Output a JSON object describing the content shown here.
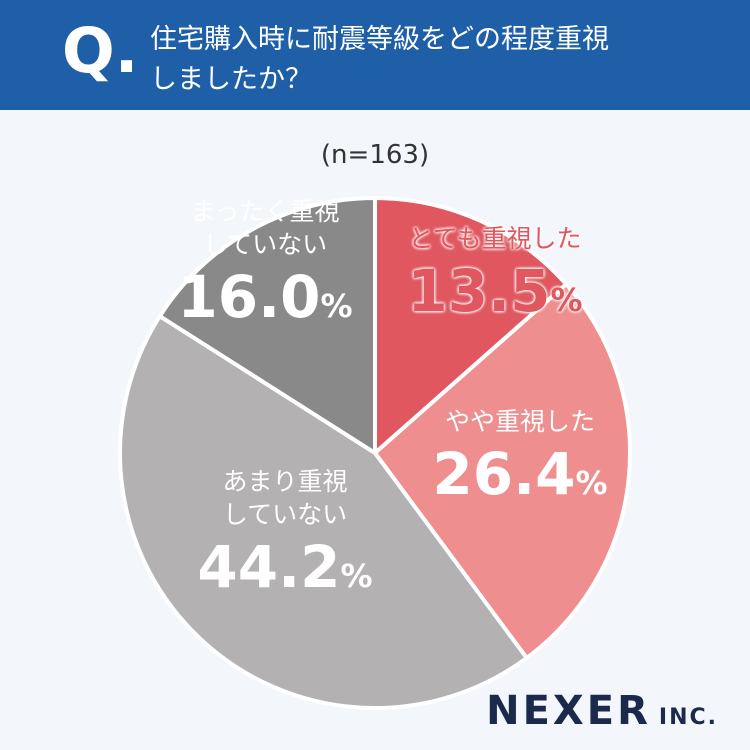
{
  "header": {
    "badge": "Q.",
    "title": "住宅購入時に耐震等級をどの程度重視\nしましたか？"
  },
  "chart_data": {
    "type": "pie",
    "subtitle": "(n=163)",
    "categories": [
      "とても重視した",
      "やや重視した",
      "あまり重視\nしていない",
      "まったく重視\nしていない"
    ],
    "values": [
      13.5,
      26.4,
      44.2,
      16.0
    ],
    "value_labels": [
      "13.5%",
      "26.4%",
      "44.2%",
      "16.0%"
    ],
    "colors": [
      "#e0575f",
      "#ee8e8f",
      "#b3b1b2",
      "#8a8989"
    ]
  },
  "footer": {
    "logo": "NEXER",
    "logo_suffix": "INC."
  }
}
